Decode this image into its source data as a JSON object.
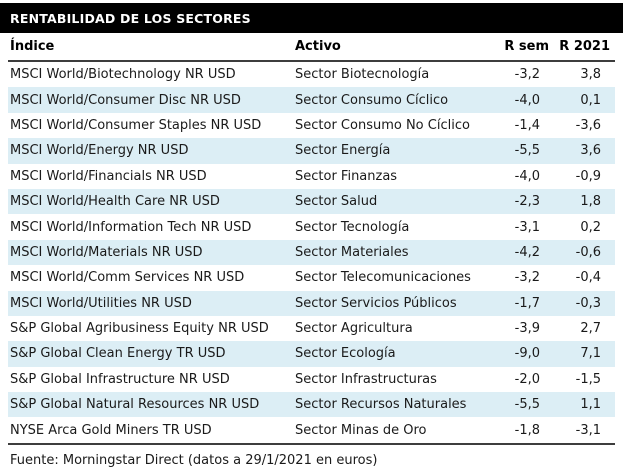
{
  "title": "RENTABILIDAD DE LOS SECTORES",
  "table": {
    "columns": [
      "Índice",
      "Activo",
      "R sem",
      "R 2021"
    ],
    "rows": [
      {
        "indice": "MSCI World/Biotechnology NR USD",
        "activo": "Sector Biotecnología",
        "r_sem": "-3,2",
        "r_2021": "3,8"
      },
      {
        "indice": "MSCI World/Consumer Disc NR USD",
        "activo": "Sector Consumo Cíclico",
        "r_sem": "-4,0",
        "r_2021": "0,1"
      },
      {
        "indice": "MSCI World/Consumer Staples NR USD",
        "activo": "Sector Consumo No Cíclico",
        "r_sem": "-1,4",
        "r_2021": "-3,6"
      },
      {
        "indice": "MSCI World/Energy NR USD",
        "activo": "Sector Energía",
        "r_sem": "-5,5",
        "r_2021": "3,6"
      },
      {
        "indice": "MSCI World/Financials NR USD",
        "activo": "Sector Finanzas",
        "r_sem": "-4,0",
        "r_2021": "-0,9"
      },
      {
        "indice": "MSCI World/Health Care NR USD",
        "activo": "Sector Salud",
        "r_sem": "-2,3",
        "r_2021": "1,8"
      },
      {
        "indice": "MSCI World/Information Tech NR USD",
        "activo": "Sector Tecnología",
        "r_sem": "-3,1",
        "r_2021": "0,2"
      },
      {
        "indice": "MSCI World/Materials NR USD",
        "activo": "Sector Materiales",
        "r_sem": "-4,2",
        "r_2021": "-0,6"
      },
      {
        "indice": "MSCI World/Comm Services NR USD",
        "activo": "Sector Telecomunicaciones",
        "r_sem": "-3,2",
        "r_2021": "-0,4"
      },
      {
        "indice": "MSCI World/Utilities NR USD",
        "activo": "Sector Servicios Públicos",
        "r_sem": "-1,7",
        "r_2021": "-0,3"
      },
      {
        "indice": "S&P Global Agribusiness Equity NR USD",
        "activo": "Sector Agricultura",
        "r_sem": "-3,9",
        "r_2021": "2,7"
      },
      {
        "indice": "S&P Global Clean Energy TR USD",
        "activo": "Sector Ecología",
        "r_sem": "-9,0",
        "r_2021": "7,1"
      },
      {
        "indice": "S&P Global Infrastructure NR USD",
        "activo": "Sector Infrastructuras",
        "r_sem": "-2,0",
        "r_2021": "-1,5"
      },
      {
        "indice": "S&P Global Natural Resources NR USD",
        "activo": "Sector Recursos Naturales",
        "r_sem": "-5,5",
        "r_2021": "1,1"
      },
      {
        "indice": "NYSE Arca Gold Miners TR USD",
        "activo": "Sector Minas de Oro",
        "r_sem": "-1,8",
        "r_2021": "-3,1"
      }
    ]
  },
  "footer": "Fuente: Morningstar Direct (datos a 29/1/2021 en euros)",
  "colors": {
    "title_bg": "#000000",
    "title_text": "#ffffff",
    "row_alt": "#dceef5",
    "rule": "#3d3d3d",
    "text": "#1a1a1a"
  }
}
